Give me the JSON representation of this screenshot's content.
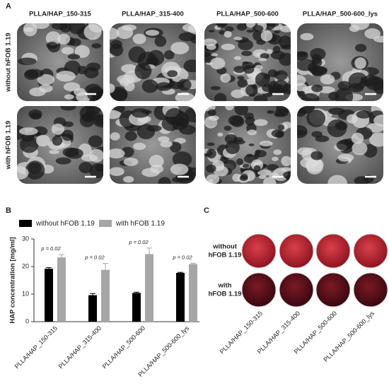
{
  "panel_a": {
    "label": "A",
    "columns": [
      "PLLA/HAP_150-315",
      "PLLA/HAP_315-400",
      "PLLA/HAP_500-600",
      "PLLA/HAP_500-600_lys"
    ],
    "rows": [
      "without hFOB 1.19",
      "with hFOB 1.19"
    ]
  },
  "chart_data": {
    "type": "bar",
    "panel_label": "B",
    "y_label": "HAP concentration [mg/ml]",
    "categories": [
      "PLLA/HAP_150-315",
      "PLLA/HAP_315-400",
      "PLLA/HAP_500-600",
      "PLLA/HAP_500-600_lys"
    ],
    "series": [
      {
        "name": "without hFOB 1.19",
        "color": "#000000",
        "values": [
          19.2,
          9.6,
          10.4,
          17.7
        ],
        "errors": [
          0.4,
          0.6,
          0.3,
          0.2
        ]
      },
      {
        "name": "with hFOB 1.19",
        "color": "#a6a6a6",
        "values": [
          23.3,
          18.8,
          24.5,
          20.9
        ],
        "errors": [
          1.0,
          2.3,
          2.2,
          0.3
        ]
      }
    ],
    "annotations": [
      "p = 0.02",
      "p = 0.02",
      "p = 0.02",
      "p = 0.02"
    ],
    "ylim": [
      0,
      30
    ],
    "yticks": [
      0,
      10,
      20,
      30
    ]
  },
  "panel_c": {
    "label": "C",
    "rows": [
      [
        "without",
        "hFOB 1.19"
      ],
      [
        "with",
        "hFOB 1.19"
      ]
    ],
    "columns": [
      "PLLA/HAP_150-315",
      "PLLA/HAP_315-400",
      "PLLA/HAP_500-600",
      "PLLA/HAP_500-600_lys"
    ]
  }
}
